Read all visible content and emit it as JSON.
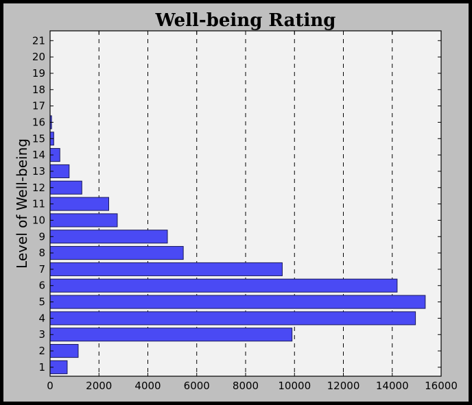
{
  "chart_data": {
    "type": "bar",
    "orientation": "horizontal",
    "title": "Well-being Rating",
    "ylabel": "Level of Well-being",
    "xlabel": "",
    "categories": [
      "1",
      "2",
      "3",
      "4",
      "5",
      "6",
      "7",
      "8",
      "9",
      "10",
      "11",
      "12",
      "13",
      "14",
      "15",
      "16",
      "17",
      "18",
      "19",
      "20",
      "21"
    ],
    "values": [
      700,
      1150,
      9900,
      14950,
      15350,
      14200,
      9500,
      5450,
      4800,
      2750,
      2400,
      1300,
      780,
      400,
      150,
      60,
      0,
      0,
      0,
      0,
      0
    ],
    "xlim": [
      0,
      16000
    ],
    "xticks": [
      0,
      2000,
      4000,
      6000,
      8000,
      10000,
      12000,
      14000,
      16000
    ],
    "grid": "vertical-dashed",
    "legend": "none",
    "colors": {
      "bar_fill": "#4a4af4",
      "bar_edge": "#1a1a5a",
      "plot_bg": "#f2f2f2",
      "figure_bg": "#bfbfbf",
      "frame": "#000000"
    }
  }
}
